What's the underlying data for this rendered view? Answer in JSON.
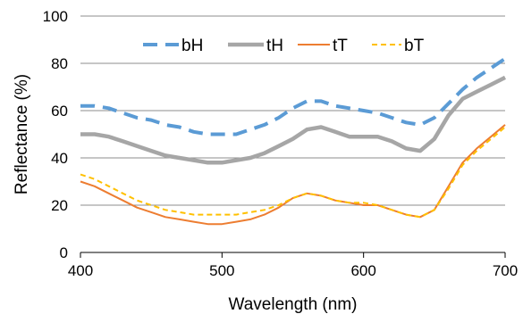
{
  "chart_data": {
    "type": "line",
    "xlabel": "Wavelength (nm)",
    "ylabel": "Reflectance (%)",
    "xlim": [
      400,
      700
    ],
    "ylim": [
      0,
      100
    ],
    "x_ticks": [
      400,
      500,
      600,
      700
    ],
    "y_ticks": [
      0,
      20,
      40,
      60,
      80,
      100
    ],
    "grid": "horizontal",
    "legend_position": "top",
    "series": [
      {
        "name": "bH",
        "color": "#5b9bd5",
        "style": "long-dash",
        "x": [
          400,
          410,
          420,
          430,
          440,
          450,
          460,
          470,
          480,
          490,
          500,
          510,
          520,
          530,
          540,
          550,
          560,
          570,
          580,
          590,
          600,
          610,
          620,
          630,
          640,
          650,
          660,
          670,
          680,
          690,
          700
        ],
        "y": [
          62,
          62,
          61,
          59,
          57,
          56,
          54,
          53,
          51,
          50,
          50,
          50,
          52,
          54,
          57,
          61,
          64,
          64,
          62,
          61,
          60,
          59,
          57,
          55,
          54,
          57,
          63,
          69,
          74,
          78,
          82
        ]
      },
      {
        "name": "tH",
        "color": "#a6a6a6",
        "style": "solid-thick",
        "x": [
          400,
          410,
          420,
          430,
          440,
          450,
          460,
          470,
          480,
          490,
          500,
          510,
          520,
          530,
          540,
          550,
          560,
          570,
          580,
          590,
          600,
          610,
          620,
          630,
          640,
          650,
          660,
          670,
          680,
          690,
          700
        ],
        "y": [
          50,
          50,
          49,
          47,
          45,
          43,
          41,
          40,
          39,
          38,
          38,
          39,
          40,
          42,
          45,
          48,
          52,
          53,
          51,
          49,
          49,
          49,
          47,
          44,
          43,
          48,
          58,
          65,
          68,
          71,
          74
        ]
      },
      {
        "name": "tT",
        "color": "#ed7d31",
        "style": "solid",
        "x": [
          400,
          410,
          420,
          430,
          440,
          450,
          460,
          470,
          480,
          490,
          500,
          510,
          520,
          530,
          540,
          550,
          560,
          570,
          580,
          590,
          600,
          610,
          620,
          630,
          640,
          650,
          660,
          670,
          680,
          690,
          700
        ],
        "y": [
          30,
          28,
          25,
          22,
          19,
          17,
          15,
          14,
          13,
          12,
          12,
          13,
          14,
          16,
          19,
          23,
          25,
          24,
          22,
          21,
          20,
          20,
          18,
          16,
          15,
          18,
          28,
          38,
          44,
          49,
          54
        ]
      },
      {
        "name": "bT",
        "color": "#ffc000",
        "style": "short-dash",
        "x": [
          400,
          410,
          420,
          430,
          440,
          450,
          460,
          470,
          480,
          490,
          500,
          510,
          520,
          530,
          540,
          550,
          560,
          570,
          580,
          590,
          600,
          610,
          620,
          630,
          640,
          650,
          660,
          670,
          680,
          690,
          700
        ],
        "y": [
          33,
          31,
          28,
          25,
          22,
          20,
          18,
          17,
          16,
          16,
          16,
          16,
          17,
          18,
          20,
          23,
          25,
          24,
          22,
          21,
          21,
          20,
          18,
          16,
          15,
          18,
          27,
          37,
          43,
          48,
          53
        ]
      }
    ]
  }
}
